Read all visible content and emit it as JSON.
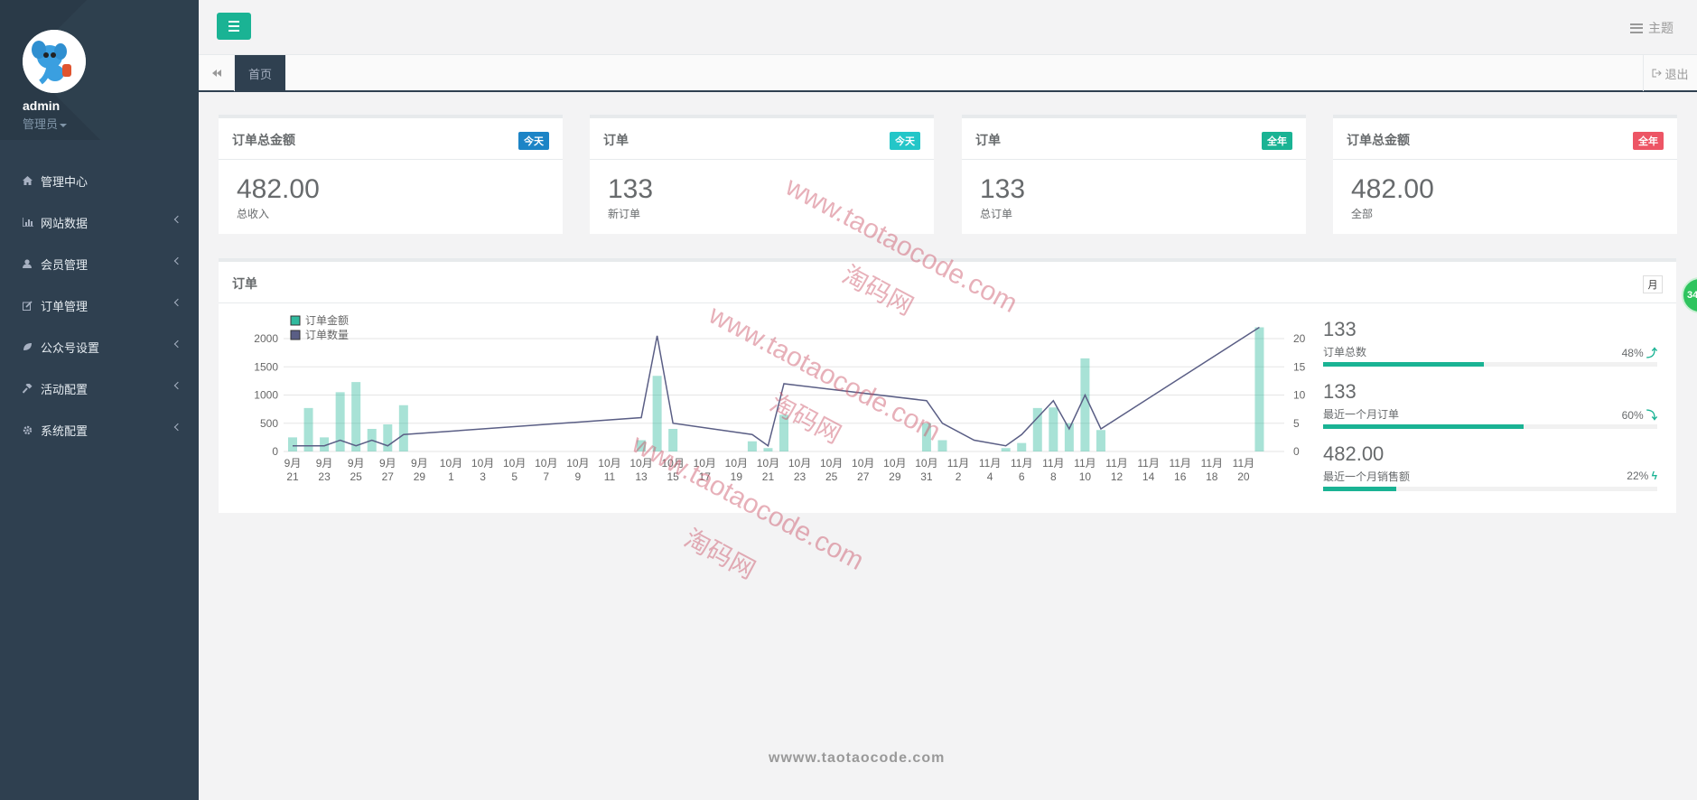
{
  "sidebar": {
    "admin_name": "admin",
    "admin_role": "管理员",
    "items": [
      {
        "label": "管理中心",
        "icon": "home-icon",
        "arrow": false
      },
      {
        "label": "网站数据",
        "icon": "bar-chart-icon",
        "arrow": true
      },
      {
        "label": "会员管理",
        "icon": "user-icon",
        "arrow": true
      },
      {
        "label": "订单管理",
        "icon": "edit-icon",
        "arrow": true
      },
      {
        "label": "公众号设置",
        "icon": "leaf-icon",
        "arrow": true
      },
      {
        "label": "活动配置",
        "icon": "gavel-icon",
        "arrow": true
      },
      {
        "label": "系统配置",
        "icon": "gear-icon",
        "arrow": true
      }
    ]
  },
  "topbar": {
    "theme_label": "主题"
  },
  "tabbar": {
    "home_tab": "首页",
    "logout_label": "退出"
  },
  "cards": [
    {
      "title": "订单总金额",
      "badge": "今天",
      "badge_color": "#1c84c6",
      "value": "482.00",
      "sub": "总收入"
    },
    {
      "title": "订单",
      "badge": "今天",
      "badge_color": "#23c6c8",
      "value": "133",
      "sub": "新订单"
    },
    {
      "title": "订单",
      "badge": "全年",
      "badge_color": "#1ab394",
      "value": "133",
      "sub": "总订单"
    },
    {
      "title": "订单总金额",
      "badge": "全年",
      "badge_color": "#ed5565",
      "value": "482.00",
      "sub": "全部"
    }
  ],
  "panel": {
    "title": "订单",
    "period_button": "月"
  },
  "stats": [
    {
      "value": "133",
      "label": "订单总数",
      "percent": "48%",
      "trend": "up",
      "fill": 0.48
    },
    {
      "value": "133",
      "label": "最近一个月订单",
      "percent": "60%",
      "trend": "down",
      "fill": 0.6
    },
    {
      "value": "482.00",
      "label": "最近一个月销售额",
      "percent": "22%",
      "trend": "bolt",
      "fill": 0.22
    }
  ],
  "chart_data": {
    "type": "bar",
    "legend": [
      "订单金额",
      "订单数量"
    ],
    "ylim_left": [
      0,
      2000
    ],
    "yticks_left": [
      0,
      500,
      1000,
      1500,
      2000
    ],
    "ylim_right": [
      0,
      20
    ],
    "yticks_right": [
      0,
      5,
      10,
      15,
      20
    ],
    "tick_labels": [
      [
        "9月",
        "21"
      ],
      [
        "9月",
        "23"
      ],
      [
        "9月",
        "25"
      ],
      [
        "9月",
        "27"
      ],
      [
        "9月",
        "29"
      ],
      [
        "10月",
        "1"
      ],
      [
        "10月",
        "3"
      ],
      [
        "10月",
        "5"
      ],
      [
        "10月",
        "7"
      ],
      [
        "10月",
        "9"
      ],
      [
        "10月",
        "11"
      ],
      [
        "10月",
        "13"
      ],
      [
        "10月",
        "15"
      ],
      [
        "10月",
        "17"
      ],
      [
        "10月",
        "19"
      ],
      [
        "10月",
        "21"
      ],
      [
        "10月",
        "23"
      ],
      [
        "10月",
        "25"
      ],
      [
        "10月",
        "27"
      ],
      [
        "10月",
        "29"
      ],
      [
        "10月",
        "31"
      ],
      [
        "11月",
        "2"
      ],
      [
        "11月",
        "4"
      ],
      [
        "11月",
        "6"
      ],
      [
        "11月",
        "8"
      ],
      [
        "11月",
        "10"
      ],
      [
        "11月",
        "12"
      ],
      [
        "11月",
        "14"
      ],
      [
        "11月",
        "16"
      ],
      [
        "11月",
        "18"
      ],
      [
        "11月",
        "20"
      ]
    ],
    "bars": [
      {
        "x": 0,
        "value": 250
      },
      {
        "x": 1,
        "value": 770
      },
      {
        "x": 2,
        "value": 250
      },
      {
        "x": 3,
        "value": 1050
      },
      {
        "x": 4,
        "value": 1230
      },
      {
        "x": 5,
        "value": 400
      },
      {
        "x": 6,
        "value": 480
      },
      {
        "x": 7,
        "value": 820
      },
      {
        "x": 22,
        "value": 200
      },
      {
        "x": 23,
        "value": 1340
      },
      {
        "x": 24,
        "value": 400
      },
      {
        "x": 29,
        "value": 180
      },
      {
        "x": 30,
        "value": 60
      },
      {
        "x": 31,
        "value": 650
      },
      {
        "x": 40,
        "value": 500
      },
      {
        "x": 41,
        "value": 200
      },
      {
        "x": 45,
        "value": 60
      },
      {
        "x": 46,
        "value": 150
      },
      {
        "x": 47,
        "value": 770
      },
      {
        "x": 48,
        "value": 780
      },
      {
        "x": 49,
        "value": 500
      },
      {
        "x": 50,
        "value": 1650
      },
      {
        "x": 51,
        "value": 380
      },
      {
        "x": 61,
        "value": 2200
      }
    ],
    "line": [
      {
        "x": 0,
        "value": 1
      },
      {
        "x": 2,
        "value": 1
      },
      {
        "x": 3,
        "value": 2
      },
      {
        "x": 4,
        "value": 1
      },
      {
        "x": 5,
        "value": 2
      },
      {
        "x": 6,
        "value": 1
      },
      {
        "x": 7,
        "value": 3
      },
      {
        "x": 22,
        "value": 6
      },
      {
        "x": 23,
        "value": 20.5
      },
      {
        "x": 24,
        "value": 5
      },
      {
        "x": 29,
        "value": 3
      },
      {
        "x": 30,
        "value": 1
      },
      {
        "x": 31,
        "value": 12
      },
      {
        "x": 40,
        "value": 9
      },
      {
        "x": 41,
        "value": 5
      },
      {
        "x": 43,
        "value": 2
      },
      {
        "x": 45,
        "value": 1
      },
      {
        "x": 46,
        "value": 3
      },
      {
        "x": 48,
        "value": 9
      },
      {
        "x": 49,
        "value": 4
      },
      {
        "x": 50,
        "value": 10
      },
      {
        "x": 51,
        "value": 4
      },
      {
        "x": 61,
        "value": 22
      }
    ]
  },
  "watermark": {
    "url": "www.taotaocode.com",
    "brand": "淘码网"
  },
  "footer": "wwww.taotaocode.com",
  "floating_badge": "34"
}
